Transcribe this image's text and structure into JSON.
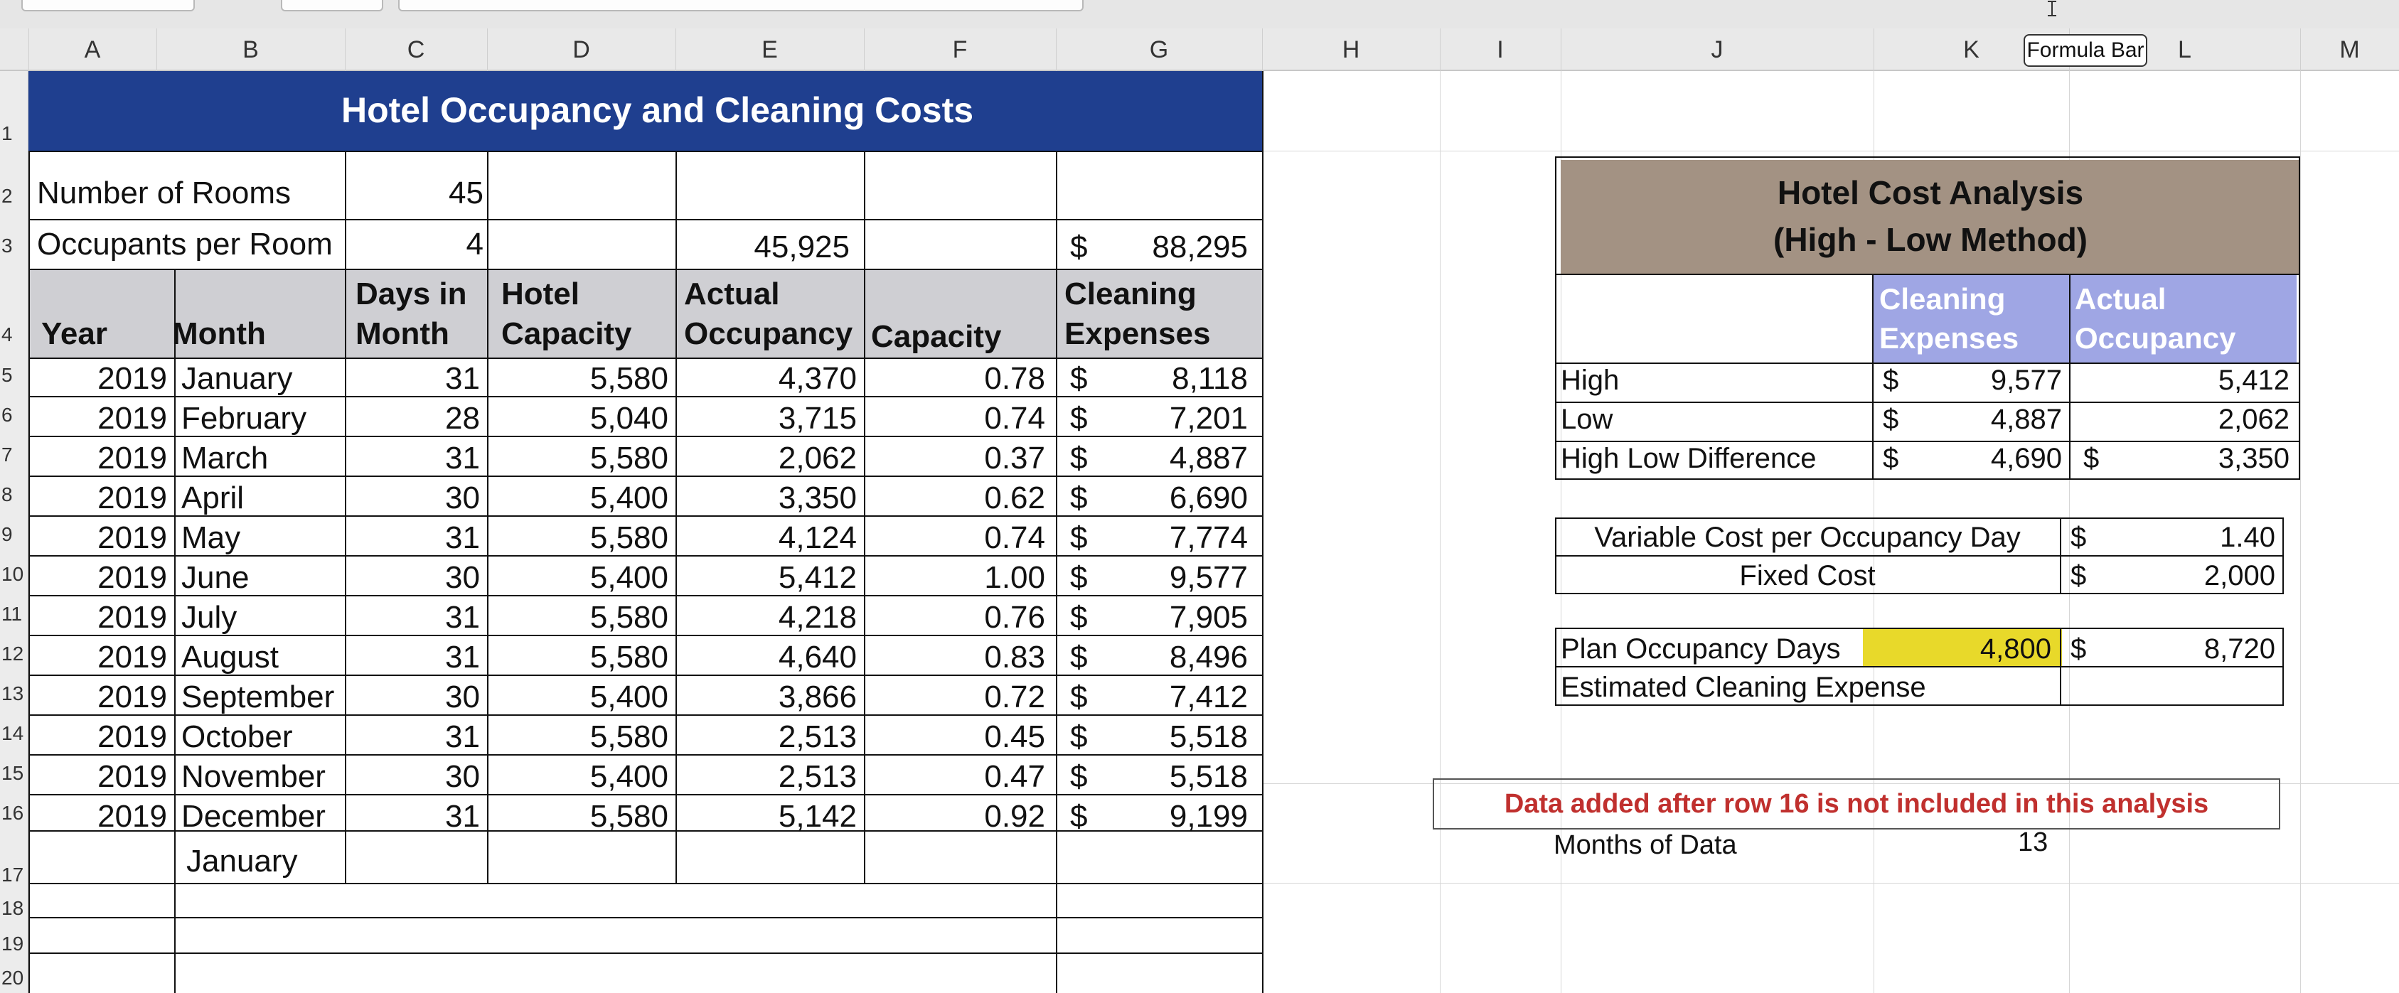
{
  "columns": [
    "A",
    "B",
    "C",
    "D",
    "E",
    "F",
    "G",
    "H",
    "I",
    "J",
    "K",
    "L",
    "M"
  ],
  "rows": [
    "1",
    "2",
    "3",
    "4",
    "5",
    "6",
    "7",
    "8",
    "9",
    "10",
    "11",
    "12",
    "13",
    "14",
    "15",
    "16",
    "17",
    "18",
    "19",
    "20"
  ],
  "tooltip": "Formula Bar",
  "sheet": {
    "title": "Hotel Occupancy and Cleaning Costs",
    "number_of_rooms_label": "Number of Rooms",
    "number_of_rooms": "45",
    "occupants_label": "Occupants per Room",
    "occupants": "4",
    "total_occupancy": "45,925",
    "total_cleaning_currency": "$",
    "total_cleaning": "88,295",
    "headers": {
      "year": "Year",
      "month": "Month",
      "days_line1": "Days in",
      "days_line2": "Month",
      "capacity_line1": "Hotel",
      "capacity_line2": "Capacity",
      "occupancy_line1": "Actual",
      "occupancy_line2": "Occupancy",
      "capacity_pct": "Capacity",
      "cleaning_line1": "Cleaning",
      "cleaning_line2": "Expenses"
    },
    "data_rows": [
      {
        "year": "2019",
        "month": "January",
        "days": "31",
        "capacity": "5,580",
        "occupancy": "4,370",
        "pct": "0.78",
        "cur": "$",
        "cleaning": "8,118"
      },
      {
        "year": "2019",
        "month": "February",
        "days": "28",
        "capacity": "5,040",
        "occupancy": "3,715",
        "pct": "0.74",
        "cur": "$",
        "cleaning": "7,201"
      },
      {
        "year": "2019",
        "month": "March",
        "days": "31",
        "capacity": "5,580",
        "occupancy": "2,062",
        "pct": "0.37",
        "cur": "$",
        "cleaning": "4,887"
      },
      {
        "year": "2019",
        "month": "April",
        "days": "30",
        "capacity": "5,400",
        "occupancy": "3,350",
        "pct": "0.62",
        "cur": "$",
        "cleaning": "6,690"
      },
      {
        "year": "2019",
        "month": "May",
        "days": "31",
        "capacity": "5,580",
        "occupancy": "4,124",
        "pct": "0.74",
        "cur": "$",
        "cleaning": "7,774"
      },
      {
        "year": "2019",
        "month": "June",
        "days": "30",
        "capacity": "5,400",
        "occupancy": "5,412",
        "pct": "1.00",
        "cur": "$",
        "cleaning": "9,577"
      },
      {
        "year": "2019",
        "month": "July",
        "days": "31",
        "capacity": "5,580",
        "occupancy": "4,218",
        "pct": "0.76",
        "cur": "$",
        "cleaning": "7,905"
      },
      {
        "year": "2019",
        "month": "August",
        "days": "31",
        "capacity": "5,580",
        "occupancy": "4,640",
        "pct": "0.83",
        "cur": "$",
        "cleaning": "8,496"
      },
      {
        "year": "2019",
        "month": "September",
        "days": "30",
        "capacity": "5,400",
        "occupancy": "3,866",
        "pct": "0.72",
        "cur": "$",
        "cleaning": "7,412"
      },
      {
        "year": "2019",
        "month": "October",
        "days": "31",
        "capacity": "5,580",
        "occupancy": "2,513",
        "pct": "0.45",
        "cur": "$",
        "cleaning": "5,518"
      },
      {
        "year": "2019",
        "month": "November",
        "days": "30",
        "capacity": "5,400",
        "occupancy": "2,513",
        "pct": "0.47",
        "cur": "$",
        "cleaning": "5,518"
      },
      {
        "year": "2019",
        "month": "December",
        "days": "31",
        "capacity": "5,580",
        "occupancy": "5,142",
        "pct": "0.92",
        "cur": "$",
        "cleaning": "9,199"
      }
    ],
    "row17_month": "January"
  },
  "analysis": {
    "title_line1": "Hotel Cost Analysis",
    "title_line2": "(High - Low Method)",
    "col_cleaning_line1": "Cleaning",
    "col_cleaning_line2": "Expenses",
    "col_occupancy_line1": "Actual",
    "col_occupancy_line2": "Occupancy",
    "high_label": "High",
    "high_cur": "$",
    "high_cleaning": "9,577",
    "high_occupancy": "5,412",
    "low_label": "Low",
    "low_cur": "$",
    "low_cleaning": "4,887",
    "low_occupancy": "2,062",
    "diff_label": "High Low Difference",
    "diff_cur": "$",
    "diff_cleaning": "4,690",
    "diff_cur2": "$",
    "diff_occupancy": "3,350",
    "variable_label": "Variable Cost per Occupancy Day",
    "variable_cur": "$",
    "variable_value": "1.40",
    "fixed_label": "Fixed Cost",
    "fixed_cur": "$",
    "fixed_value": "2,000",
    "plan_label": "Plan Occupancy Days",
    "plan_value": "4,800",
    "plan_cur": "$",
    "plan_estimate": "8,720",
    "estimated_label": "Estimated Cleaning Expense",
    "warning": "Data added after row 16 is not included in this analysis",
    "months_label": "Months of Data",
    "months_value": "13"
  },
  "colors": {
    "title_bar": "#1f3f8f",
    "analysis_header": "#a39283",
    "analysis_columns": "#9fa6e4",
    "plan_highlight": "#e8d92a",
    "warning_text": "#c0302e"
  }
}
